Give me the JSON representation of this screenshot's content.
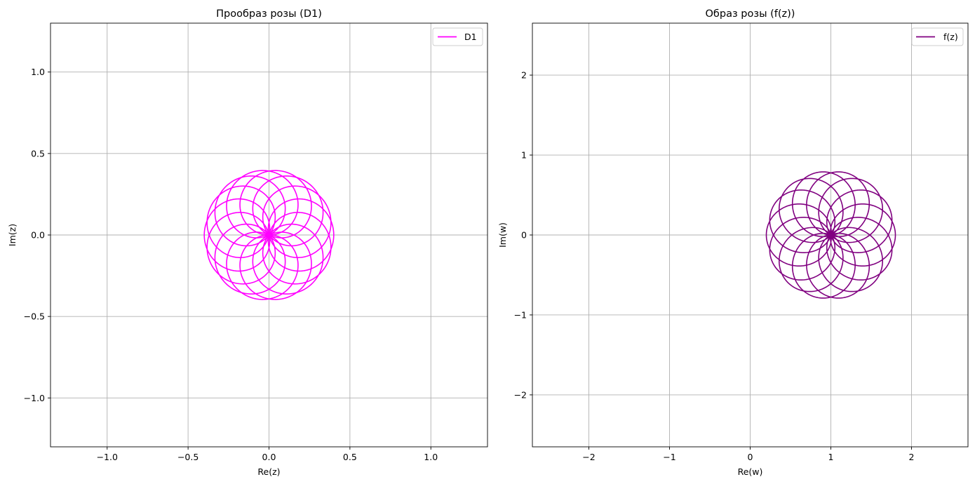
{
  "chart_data": [
    {
      "type": "line",
      "title": "Прообраз розы (D1)",
      "xlabel": "Re(z)",
      "ylabel": "Im(z)",
      "xlim": [
        -1.35,
        1.35
      ],
      "ylim": [
        -1.3,
        1.3
      ],
      "xticks": [
        -1.0,
        -0.5,
        0.0,
        0.5,
        1.0
      ],
      "xtick_labels": [
        "−1.0",
        "−0.5",
        "0.0",
        "0.5",
        "1.0"
      ],
      "yticks": [
        -1.0,
        -0.5,
        0.0,
        0.5,
        1.0
      ],
      "ytick_labels": [
        "−1.0",
        "−0.5",
        "0.0",
        "0.5",
        "1.0"
      ],
      "grid": true,
      "legend_position": "top-right",
      "series": [
        {
          "name": "D1",
          "color": "#ff00ff",
          "curve": "rose r = 0.4·cos(7θ/8)",
          "r_max": 0.4,
          "petals_param": 0.875,
          "theta_range_turns": 8,
          "samples": 3200
        }
      ]
    },
    {
      "type": "line",
      "title": "Образ розы (f(z))",
      "xlabel": "Re(w)",
      "ylabel": "Im(w)",
      "xlim": [
        -2.7,
        2.7
      ],
      "ylim": [
        -2.65,
        2.65
      ],
      "xticks": [
        -2,
        -1,
        0,
        1,
        2
      ],
      "xtick_labels": [
        "−2",
        "−1",
        "0",
        "1",
        "2"
      ],
      "yticks": [
        -2,
        -1,
        0,
        1,
        2
      ],
      "ytick_labels": [
        "−2",
        "−1",
        "0",
        "1",
        "2"
      ],
      "grid": true,
      "legend_position": "top-right",
      "series": [
        {
          "name": "f(z)",
          "color": "#800080",
          "curve": "w = 1 + z + 2.5·z·|z| applied to D1",
          "samples": 3200
        }
      ]
    }
  ]
}
